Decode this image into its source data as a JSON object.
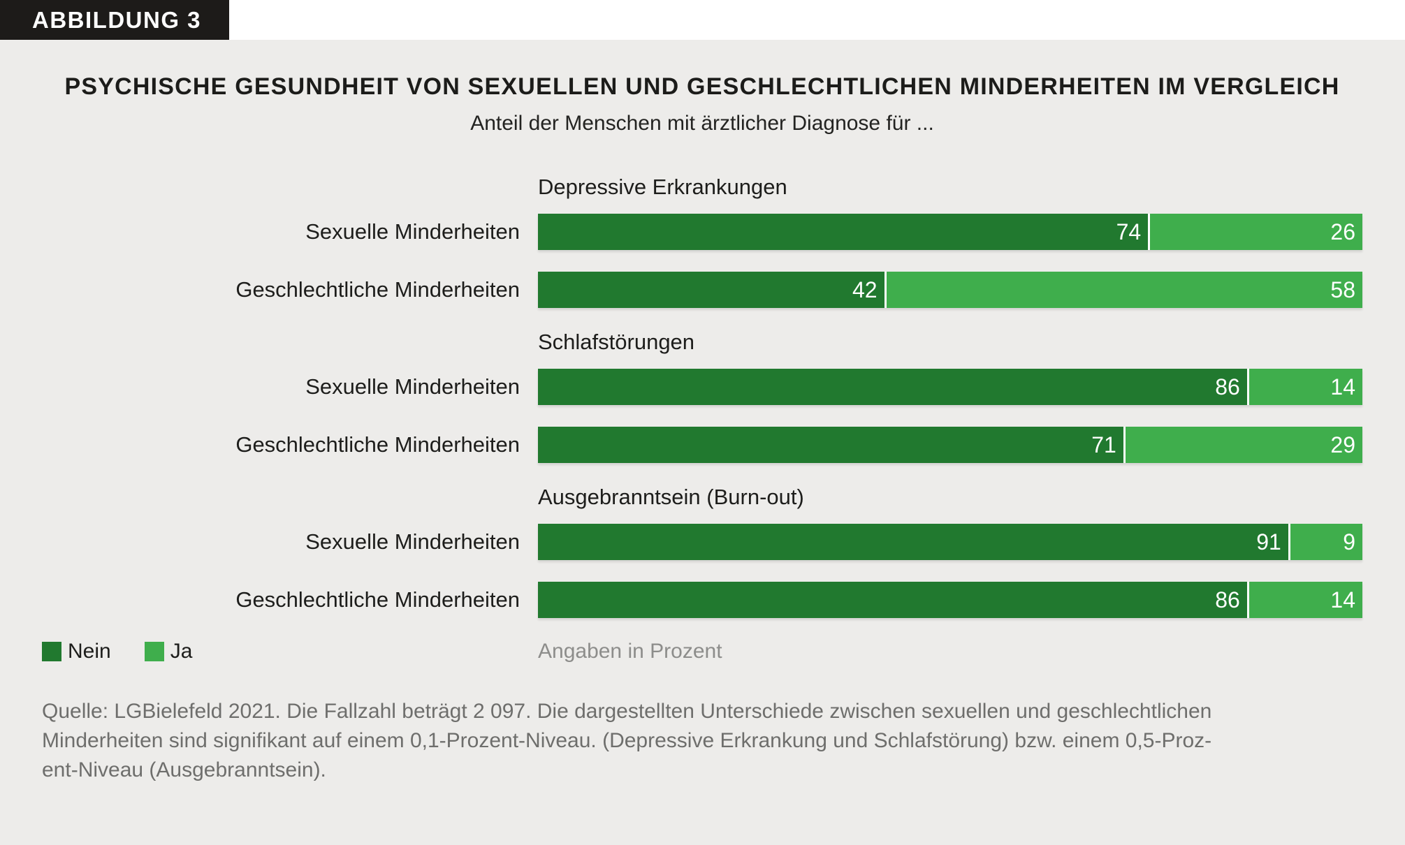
{
  "tag_label": "ABBILDUNG 3",
  "header": {
    "title": "PSYCHISCHE GESUNDHEIT VON SEXUELLEN UND GESCHLECHTLICHEN MINDERHEITEN IM VERGLEICH",
    "subtitle": "Anteil der Menschen mit ärztlicher Diagnose für ..."
  },
  "chart_data": {
    "type": "bar",
    "orientation": "horizontal-stacked",
    "unit": "percent",
    "xlim": [
      0,
      100
    ],
    "series_names": [
      "Nein",
      "Ja"
    ],
    "groups": [
      {
        "label": "Depressive Erkrankungen",
        "rows": [
          {
            "label": "Sexuelle Minderheiten",
            "nein": 74,
            "ja": 26
          },
          {
            "label": "Geschlechtliche Minderheiten",
            "nein": 42,
            "ja": 58
          }
        ]
      },
      {
        "label": "Schlafstörungen",
        "rows": [
          {
            "label": "Sexuelle Minderheiten",
            "nein": 86,
            "ja": 14
          },
          {
            "label": "Geschlechtliche Minderheiten",
            "nein": 71,
            "ja": 29
          }
        ]
      },
      {
        "label": "Ausgebranntsein (Burn-out)",
        "rows": [
          {
            "label": "Sexuelle Minderheiten",
            "nein": 91,
            "ja": 9
          },
          {
            "label": "Geschlechtliche Minderheiten",
            "nein": 86,
            "ja": 14
          }
        ]
      }
    ],
    "legend": [
      {
        "label": "Nein",
        "color": "#21792f"
      },
      {
        "label": "Ja",
        "color": "#3fae4c"
      }
    ],
    "note": "Angaben in Prozent"
  },
  "footer": {
    "line1": "Quelle: LGBielefeld 2021. Die Fallzahl beträgt 2 097. Die dargestellten Unterschiede zwischen sexuellen und geschlechtlichen",
    "line2": "Minderheiten sind signifikant auf einem 0,1-Prozent-Niveau. (Depressive Erkrankung und Schlafstörung) bzw. einem 0,5-Proz-",
    "line3": "ent-Niveau (Ausgebranntsein)."
  },
  "colors": {
    "nein": "#21792f",
    "ja": "#3fae4c",
    "panel_background": "#edecea",
    "tag_background": "#1d1b19"
  }
}
